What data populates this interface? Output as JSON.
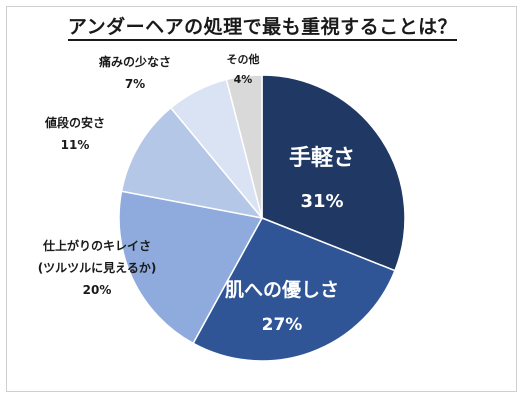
{
  "chart_data": {
    "type": "pie",
    "title": "アンダーヘアの処理で最も重視することは？",
    "slices": [
      {
        "label": "手軽さ",
        "value": 31,
        "display": "31%",
        "color": "#1f3864"
      },
      {
        "label": "肌への優しさ",
        "value": 27,
        "display": "27%",
        "color": "#2f5597"
      },
      {
        "label": "仕上がりのキレイさ\n(ツルツルに見えるか)",
        "value": 20,
        "display": "20%",
        "color": "#8faadc"
      },
      {
        "label": "値段の安さ",
        "value": 11,
        "display": "11%",
        "color": "#b4c7e7"
      },
      {
        "label": "痛みの少なさ",
        "value": 7,
        "display": "7%",
        "color": "#dae3f3"
      },
      {
        "label": "その他",
        "value": 4,
        "display": "4%",
        "color": "#d9d9d9"
      }
    ],
    "start_angle_deg": 0,
    "direction": "clockwise"
  }
}
